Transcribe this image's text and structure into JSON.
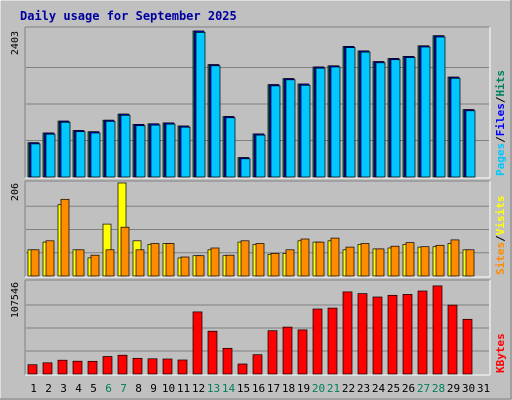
{
  "title": "Daily usage for September 2025",
  "colors": {
    "background": "#C0C0C0",
    "title": "#0000A0",
    "hits": "#00805C",
    "files": "#0000FF",
    "pages": "#00C8FF",
    "visits": "#FFFF00",
    "sites": "#FF8C00",
    "kbytes": "#FF0000",
    "grid": "#808080",
    "weekend_label": "#00805C",
    "weekday_label": "#000000"
  },
  "chart_data": [
    {
      "type": "bar",
      "name": "hits-files-pages",
      "x": [
        1,
        2,
        3,
        4,
        5,
        6,
        7,
        8,
        9,
        10,
        11,
        12,
        13,
        14,
        15,
        16,
        17,
        18,
        19,
        20,
        21,
        22,
        23,
        24,
        25,
        26,
        27,
        28,
        29,
        30,
        31
      ],
      "ymax_label": "2403",
      "ylim": [
        0,
        2403
      ],
      "legend": [
        {
          "label": "Hits",
          "color_key": "hits"
        },
        {
          "label": "Files",
          "color_key": "files"
        },
        {
          "label": "Pages",
          "color_key": "pages"
        }
      ],
      "series": [
        {
          "name": "Hits",
          "values": [
            565,
            725,
            920,
            765,
            745,
            935,
            1035,
            865,
            875,
            890,
            840,
            2403,
            1850,
            995,
            320,
            710,
            1520,
            1620,
            1530,
            1810,
            1830,
            2150,
            2075,
            1900,
            1950,
            1985,
            2160,
            2325,
            1645,
            1110,
            0
          ]
        },
        {
          "name": "Files",
          "values": [
            565,
            725,
            920,
            765,
            745,
            935,
            1035,
            865,
            875,
            890,
            840,
            2403,
            1850,
            995,
            320,
            710,
            1520,
            1620,
            1530,
            1810,
            1830,
            2150,
            2075,
            1900,
            1950,
            1985,
            2160,
            2325,
            1645,
            1110,
            0
          ]
        },
        {
          "name": "Pages",
          "values": [
            545,
            705,
            900,
            745,
            725,
            915,
            1015,
            845,
            855,
            870,
            820,
            2380,
            1830,
            975,
            300,
            690,
            1500,
            1600,
            1510,
            1790,
            1810,
            2130,
            2055,
            1880,
            1930,
            1965,
            2140,
            2305,
            1625,
            1090,
            0
          ]
        }
      ],
      "grid": true
    },
    {
      "type": "bar",
      "name": "visits-sites",
      "x": [
        1,
        2,
        3,
        4,
        5,
        6,
        7,
        8,
        9,
        10,
        11,
        12,
        13,
        14,
        15,
        16,
        17,
        18,
        19,
        20,
        21,
        22,
        23,
        24,
        25,
        26,
        27,
        28,
        29,
        30,
        31
      ],
      "ymax_label": "206",
      "ylim": [
        0,
        206
      ],
      "legend": [
        {
          "label": "Visits",
          "color_key": "visits"
        },
        {
          "label": "Sites",
          "color_key": "sites"
        }
      ],
      "series": [
        {
          "name": "Visits",
          "values": [
            58,
            75,
            158,
            58,
            40,
            115,
            206,
            78,
            70,
            72,
            40,
            45,
            58,
            45,
            75,
            70,
            48,
            50,
            78,
            75,
            78,
            58,
            70,
            60,
            62,
            70,
            64,
            65,
            72,
            58,
            0
          ]
        },
        {
          "name": "Sites",
          "values": [
            58,
            78,
            170,
            58,
            46,
            58,
            108,
            58,
            72,
            72,
            42,
            45,
            62,
            46,
            78,
            72,
            50,
            58,
            82,
            75,
            84,
            64,
            72,
            60,
            66,
            74,
            65,
            68,
            80,
            58,
            0
          ]
        }
      ],
      "grid": true
    },
    {
      "type": "bar",
      "name": "kbytes",
      "x": [
        1,
        2,
        3,
        4,
        5,
        6,
        7,
        8,
        9,
        10,
        11,
        12,
        13,
        14,
        15,
        16,
        17,
        18,
        19,
        20,
        21,
        22,
        23,
        24,
        25,
        26,
        27,
        28,
        29,
        30,
        31
      ],
      "ymax_label": "107546",
      "ylim": [
        0,
        107546
      ],
      "legend": [
        {
          "label": "KBytes",
          "color_key": "kbytes"
        }
      ],
      "series": [
        {
          "name": "KBytes",
          "values": [
            10900,
            13100,
            16100,
            15000,
            14900,
            20400,
            22000,
            18400,
            17800,
            17500,
            16400,
            72600,
            50000,
            30000,
            11700,
            22600,
            50600,
            54800,
            51500,
            76000,
            77000,
            96000,
            94000,
            90000,
            92000,
            93000,
            97000,
            103000,
            80600,
            64000,
            0
          ]
        }
      ],
      "grid": true
    }
  ],
  "x_labels": [
    "1",
    "2",
    "3",
    "4",
    "5",
    "6",
    "7",
    "8",
    "9",
    "10",
    "11",
    "12",
    "13",
    "14",
    "15",
    "16",
    "17",
    "18",
    "19",
    "20",
    "21",
    "22",
    "23",
    "24",
    "25",
    "26",
    "27",
    "28",
    "29",
    "30",
    "31"
  ],
  "weekend_days": [
    6,
    7,
    13,
    14,
    20,
    21,
    27,
    28
  ]
}
